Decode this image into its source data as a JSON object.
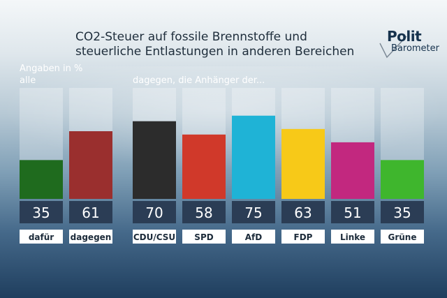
{
  "header": {
    "title_line1": "CO2-Steuer auf fossile Brennstoffe und",
    "title_line2": "steuerliche Entlastungen in anderen Bereichen",
    "unit_note": "Angaben in %",
    "logo_line1": "Polit",
    "logo_line2": "Barometer"
  },
  "groups": {
    "all_label": "alle",
    "party_label": "dagegen, die Anhänger der..."
  },
  "chart_data": {
    "type": "bar",
    "title": "CO2-Steuer auf fossile Brennstoffe und steuerliche Entlastungen in anderen Bereichen",
    "unit": "%",
    "ylim": [
      0,
      100
    ],
    "groups": [
      {
        "label": "alle",
        "categories": [
          "dafür",
          "dagegen"
        ],
        "values": [
          35,
          61
        ],
        "colors": [
          "#1f6b1e",
          "#9a2f2e"
        ]
      },
      {
        "label": "dagegen, die Anhänger der...",
        "categories": [
          "CDU/CSU",
          "SPD",
          "AfD",
          "FDP",
          "Linke",
          "Grüne"
        ],
        "values": [
          70,
          58,
          75,
          63,
          51,
          35
        ],
        "colors": [
          "#2c2c2c",
          "#d0392a",
          "#1fb3d6",
          "#f7c918",
          "#c2287f",
          "#3fb62d"
        ]
      }
    ]
  }
}
